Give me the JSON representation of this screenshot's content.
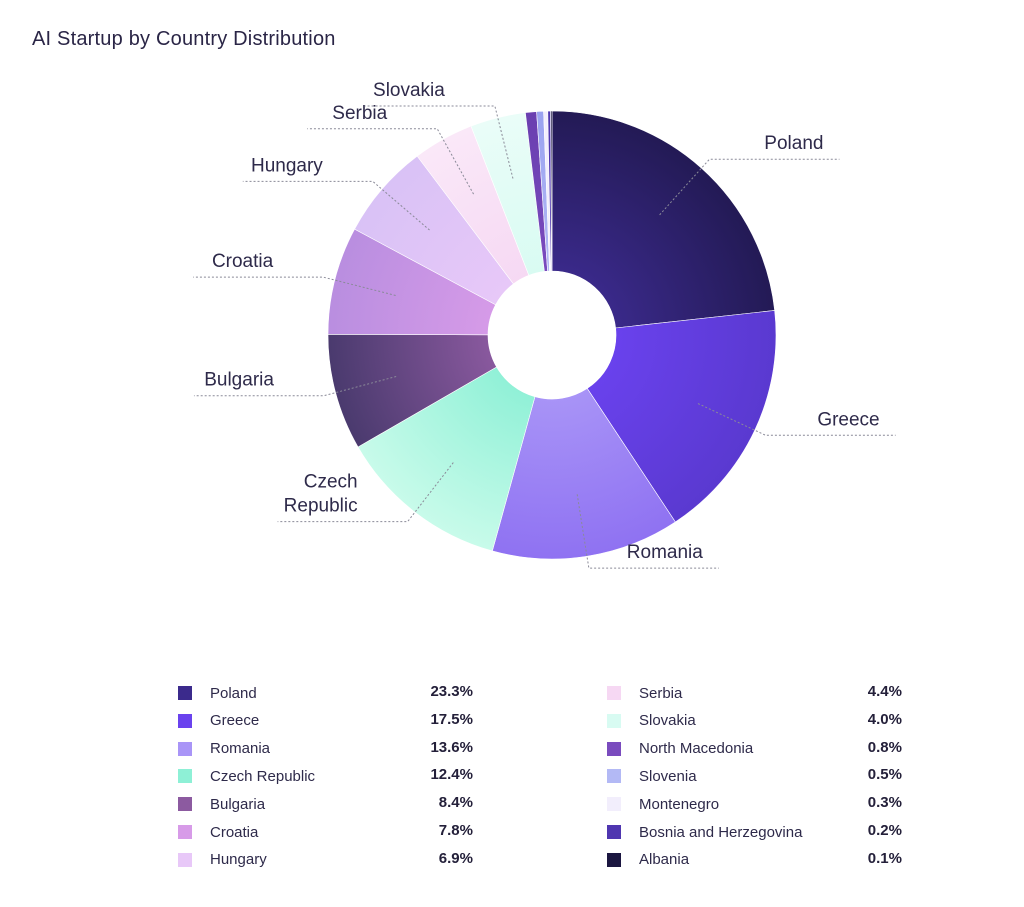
{
  "title": "AI Startup by Country Distribution",
  "chart_data": {
    "type": "pie",
    "donut": true,
    "title": "AI Startup by Country Distribution",
    "legend_placement": "bottom",
    "slices": [
      {
        "name": "Poland",
        "value": 23.3,
        "label": "23.3%",
        "color": "#3b2a8c",
        "color2": "#231a55"
      },
      {
        "name": "Greece",
        "value": 17.5,
        "label": "17.5%",
        "color": "#6a42ee",
        "color2": "#5a39d0"
      },
      {
        "name": "Romania",
        "value": 13.6,
        "label": "13.6%",
        "color": "#a995f7",
        "color2": "#8f72f2"
      },
      {
        "name": "Czech Republic",
        "value": 12.4,
        "label": "12.4%",
        "color": "#8ef0d6",
        "color2": "#c8fbea"
      },
      {
        "name": "Bulgaria",
        "value": 8.4,
        "label": "8.4%",
        "color": "#8c5aa0",
        "color2": "#4a3a6e"
      },
      {
        "name": "Croatia",
        "value": 7.8,
        "label": "7.8%",
        "color": "#d79be8",
        "color2": "#b98ee0"
      },
      {
        "name": "Hungary",
        "value": 6.9,
        "label": "6.9%",
        "color": "#e8c8f8",
        "color2": "#d9c2f6"
      },
      {
        "name": "Serbia",
        "value": 4.4,
        "label": "4.4%",
        "color": "#f6d8f3",
        "color2": "#fae8f8"
      },
      {
        "name": "Slovakia",
        "value": 4.0,
        "label": "4.0%",
        "color": "#d8fbf2",
        "color2": "#eafdf8"
      },
      {
        "name": "North Macedonia",
        "value": 0.8,
        "label": "0.8%",
        "color": "#7a4bbe",
        "color2": "#6a3fb0"
      },
      {
        "name": "Slovenia",
        "value": 0.5,
        "label": "0.5%",
        "color": "#b3b9f5",
        "color2": "#9aa2f0"
      },
      {
        "name": "Montenegro",
        "value": 0.3,
        "label": "0.3%",
        "color": "#f2eefc",
        "color2": "#f2eefc"
      },
      {
        "name": "Bosnia and Herzegovina",
        "value": 0.2,
        "label": "0.2%",
        "color": "#4f36b0",
        "color2": "#4f36b0"
      },
      {
        "name": "Albania",
        "value": 0.1,
        "label": "0.1%",
        "color": "#1b1640",
        "color2": "#1b1640"
      }
    ],
    "outer_labels": [
      {
        "slice": "Poland",
        "lines": [
          "Poland"
        ]
      },
      {
        "slice": "Greece",
        "lines": [
          "Greece"
        ]
      },
      {
        "slice": "Romania",
        "lines": [
          "Romania"
        ]
      },
      {
        "slice": "Czech Republic",
        "lines": [
          "Czech",
          "Republic"
        ]
      },
      {
        "slice": "Bulgaria",
        "lines": [
          "Bulgaria"
        ]
      },
      {
        "slice": "Croatia",
        "lines": [
          "Croatia"
        ]
      },
      {
        "slice": "Hungary",
        "lines": [
          "Hungary"
        ]
      },
      {
        "slice": "Serbia",
        "lines": [
          "Serbia"
        ]
      },
      {
        "slice": "Slovakia",
        "lines": [
          "Slovakia"
        ]
      }
    ]
  }
}
